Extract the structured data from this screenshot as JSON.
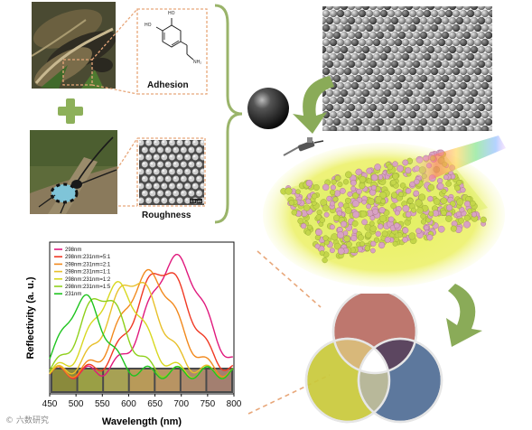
{
  "labels": {
    "adhesion": "Adhesion",
    "roughness": "Roughness",
    "scale_bar": "0.5 μm"
  },
  "molecule": {
    "oh_top": "HO",
    "oh_left": "HO",
    "nh2": "NH₂"
  },
  "watermark": "© 六数研究",
  "venn": {
    "circles": [
      {
        "name": "red",
        "color": "#b86b62"
      },
      {
        "name": "yellow-green",
        "color": "#c9c93a"
      },
      {
        "name": "blue",
        "color": "#4f6c95"
      }
    ]
  },
  "chart_data": {
    "type": "line",
    "xlabel": "Wavelength (nm)",
    "ylabel": "Reflectivity (a. u.)",
    "xlim": [
      450,
      800
    ],
    "xticks": [
      450,
      500,
      550,
      600,
      650,
      700,
      750,
      800
    ],
    "series": [
      {
        "name": "298nm",
        "color": "#e0197d",
        "peak": 690,
        "width": 72,
        "amp": 0.86
      },
      {
        "name": "298nm:231nm=5:1",
        "color": "#f03a24",
        "peak": 665,
        "width": 72,
        "amp": 0.8
      },
      {
        "name": "298nm:231nm=2:1",
        "color": "#f28a1e",
        "peak": 640,
        "width": 70,
        "amp": 0.76
      },
      {
        "name": "298nm:231nm=1:1",
        "color": "#e8c02a",
        "peak": 610,
        "width": 68,
        "amp": 0.73
      },
      {
        "name": "298nm:231nm=1:2",
        "color": "#d8d820",
        "peak": 580,
        "width": 64,
        "amp": 0.68
      },
      {
        "name": "298nm:231nm=1:5",
        "color": "#8fd01c",
        "peak": 550,
        "width": 58,
        "amp": 0.63
      },
      {
        "name": "231nm",
        "color": "#1fc41f",
        "peak": 515,
        "width": 52,
        "amp": 0.6
      }
    ],
    "swatches": [
      "#8a8a3c",
      "#9a9f45",
      "#a7a154",
      "#b89a59",
      "#b89463",
      "#ad8a6b",
      "#a37f70"
    ]
  }
}
